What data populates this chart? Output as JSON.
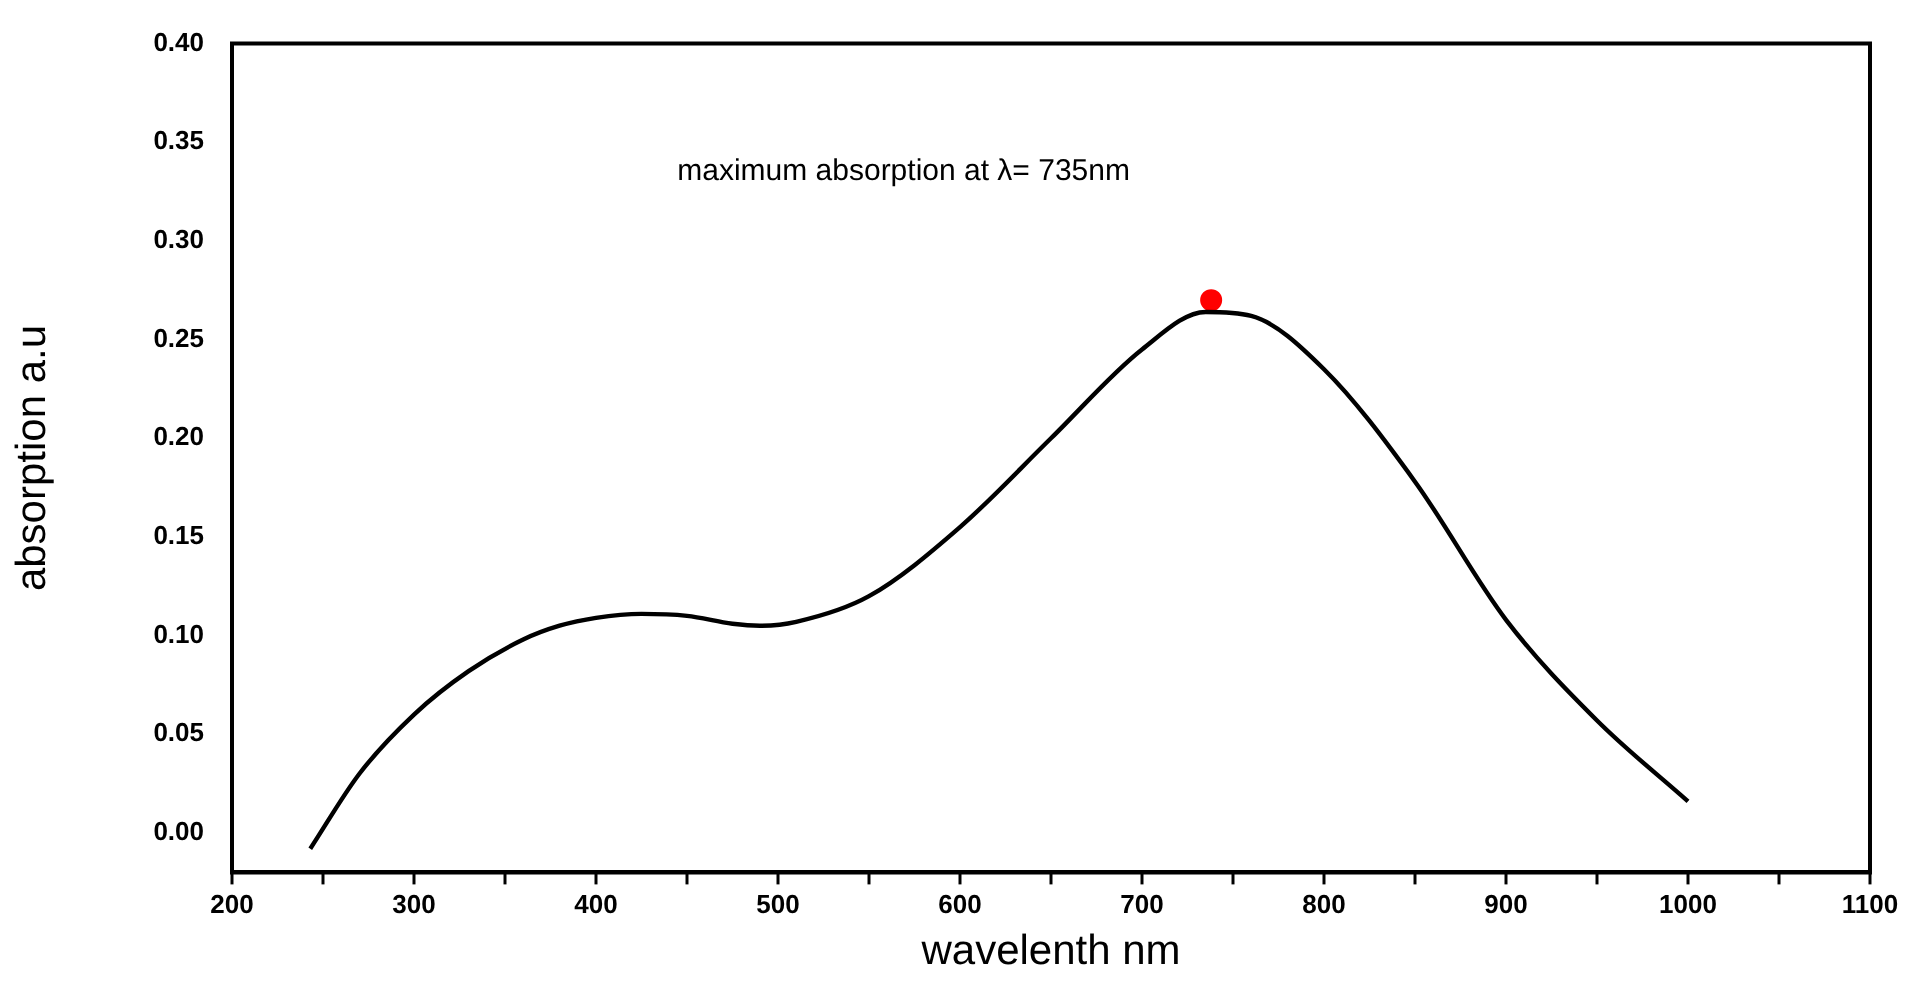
{
  "chart_data": {
    "type": "line",
    "xlabel": "wavelenth nm",
    "ylabel": "absorption a.u",
    "annotations": [
      "maximum absorption at λ= 735nm"
    ],
    "xlim": [
      200,
      1100
    ],
    "xticks": [
      200,
      {
        "value": 250,
        "label": null
      },
      300,
      {
        "value": 350,
        "label": null
      },
      400,
      {
        "value": 450,
        "label": null
      },
      500,
      {
        "value": 550,
        "label": null
      },
      600,
      {
        "value": 650,
        "label": null
      },
      700,
      {
        "value": 750,
        "label": null
      },
      800,
      {
        "value": 850,
        "label": null
      },
      900,
      {
        "value": 950,
        "label": null
      },
      1000,
      {
        "value": 1050,
        "label": null
      },
      1100
    ],
    "ylim": [
      -0.02,
      0.4
    ],
    "yticks": [
      {
        "value": 0,
        "label": "0.00"
      },
      {
        "value": 0.05,
        "label": "0.05"
      },
      {
        "value": 0.1,
        "label": "0.10"
      },
      {
        "value": 0.15,
        "label": "0.15"
      },
      {
        "value": 0.2,
        "label": "0.20"
      },
      {
        "value": 0.25,
        "label": "0.25"
      },
      {
        "value": 0.3,
        "label": "0.30"
      },
      {
        "value": 0.35,
        "label": "0.35"
      },
      {
        "value": 0.4,
        "label": "0.40"
      }
    ],
    "grid": false,
    "legend": false,
    "marker": "none",
    "line_style": "solid",
    "series": [
      {
        "color": "#000000",
        "x": [
          243,
          270,
          300,
          330,
          360,
          380,
          400,
          425,
          450,
          475,
          490,
          510,
          550,
          600,
          650,
          700,
          735,
          760,
          800,
          850,
          900,
          950,
          1000
        ],
        "values": [
          -0.008,
          0.03,
          0.06,
          0.082,
          0.098,
          0.105,
          0.109,
          0.111,
          0.11,
          0.106,
          0.105,
          0.107,
          0.12,
          0.155,
          0.2,
          0.245,
          0.264,
          0.262,
          0.235,
          0.178,
          0.108,
          0.057,
          0.016
        ]
      },
      {
        "type": "scatter",
        "marker": "circle",
        "color": "#ff0000",
        "x": [
          738
        ],
        "values": [
          0.27
        ]
      }
    ]
  }
}
